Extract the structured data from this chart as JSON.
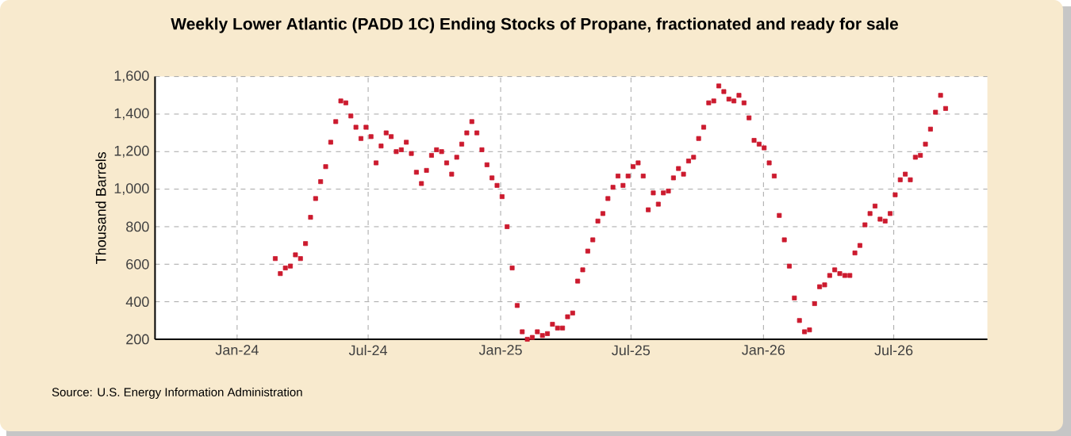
{
  "chart_data": {
    "type": "scatter",
    "title": "Weekly Lower Atlantic (PADD 1C) Ending Stocks of Propane, fractionated and ready for sale",
    "ylabel": "Thousand Barrels",
    "annotations": [
      "Source: U.S. Energy Information Administration"
    ],
    "x": [
      "2024-02-23",
      "2024-03-01",
      "2024-03-08",
      "2024-03-15",
      "2024-03-22",
      "2024-03-29",
      "2024-04-05",
      "2024-04-12",
      "2024-04-19",
      "2024-04-26",
      "2024-05-03",
      "2024-05-10",
      "2024-05-17",
      "2024-05-24",
      "2024-05-31",
      "2024-06-07",
      "2024-06-14",
      "2024-06-21",
      "2024-06-28",
      "2024-07-05",
      "2024-07-12",
      "2024-07-19",
      "2024-07-26",
      "2024-08-02",
      "2024-08-09",
      "2024-08-16",
      "2024-08-23",
      "2024-08-30",
      "2024-09-06",
      "2024-09-13",
      "2024-09-20",
      "2024-09-27",
      "2024-10-04",
      "2024-10-11",
      "2024-10-18",
      "2024-10-25",
      "2024-11-01",
      "2024-11-08",
      "2024-11-15",
      "2024-11-22",
      "2024-11-29",
      "2024-12-06",
      "2024-12-13",
      "2024-12-20",
      "2024-12-27",
      "2025-01-03",
      "2025-01-10",
      "2025-01-17",
      "2025-01-24",
      "2025-01-31",
      "2025-02-07",
      "2025-02-14",
      "2025-02-21",
      "2025-02-28",
      "2025-03-07",
      "2025-03-14",
      "2025-03-21",
      "2025-03-28",
      "2025-04-04",
      "2025-04-11",
      "2025-04-18",
      "2025-04-25",
      "2025-05-02",
      "2025-05-09",
      "2025-05-16",
      "2025-05-23",
      "2025-05-30",
      "2025-06-06",
      "2025-06-13",
      "2025-06-20",
      "2025-06-27",
      "2025-07-04",
      "2025-07-11",
      "2025-07-18",
      "2025-07-25",
      "2025-08-01",
      "2025-08-08",
      "2025-08-15",
      "2025-08-22",
      "2025-08-29",
      "2025-09-05",
      "2025-09-12",
      "2025-09-19",
      "2025-09-26",
      "2025-10-03",
      "2025-10-10",
      "2025-10-17",
      "2025-10-24",
      "2025-10-31",
      "2025-11-07",
      "2025-11-14",
      "2025-11-21",
      "2025-11-28",
      "2025-12-05",
      "2025-12-12",
      "2025-12-19",
      "2025-12-26",
      "2026-01-02",
      "2026-01-09",
      "2026-01-16",
      "2026-01-23",
      "2026-01-30",
      "2026-02-06",
      "2026-02-13",
      "2026-02-20",
      "2026-02-27",
      "2026-03-06",
      "2026-03-13",
      "2026-03-20",
      "2026-03-27",
      "2026-04-03",
      "2026-04-10",
      "2026-04-17",
      "2026-04-24",
      "2026-05-01",
      "2026-05-08",
      "2026-05-15",
      "2026-05-22",
      "2026-05-29",
      "2026-06-05",
      "2026-06-12",
      "2026-06-19",
      "2026-06-26",
      "2026-07-03",
      "2026-07-10",
      "2026-07-17",
      "2026-07-24",
      "2026-07-31",
      "2026-08-07",
      "2026-08-14",
      "2026-08-21",
      "2026-08-28",
      "2026-09-04",
      "2026-09-11"
    ],
    "series": [
      {
        "color": "#cc1a2e",
        "values": [
          630,
          550,
          580,
          590,
          650,
          630,
          710,
          850,
          950,
          1040,
          1120,
          1250,
          1360,
          1470,
          1460,
          1390,
          1330,
          1270,
          1330,
          1280,
          1140,
          1230,
          1300,
          1280,
          1200,
          1210,
          1250,
          1190,
          1090,
          1030,
          1100,
          1180,
          1210,
          1200,
          1140,
          1080,
          1170,
          1240,
          1300,
          1360,
          1300,
          1210,
          1130,
          1060,
          1020,
          960,
          800,
          580,
          380,
          240,
          200,
          210,
          240,
          220,
          230,
          280,
          260,
          260,
          320,
          340,
          510,
          570,
          670,
          730,
          830,
          870,
          950,
          1010,
          1070,
          1020,
          1070,
          1120,
          1140,
          1070,
          890,
          980,
          920,
          980,
          990,
          1060,
          1110,
          1080,
          1150,
          1170,
          1270,
          1330,
          1460,
          1470,
          1550,
          1520,
          1480,
          1470,
          1500,
          1460,
          1380,
          1260,
          1240,
          1220,
          1140,
          1070,
          860,
          730,
          590,
          420,
          300,
          240,
          250,
          390,
          480,
          490,
          540,
          570,
          550,
          540,
          540,
          660,
          700,
          810,
          870,
          910,
          840,
          830,
          870,
          970,
          1050,
          1080,
          1050,
          1170,
          1180,
          1240,
          1320,
          1410,
          1500,
          1430
        ]
      }
    ],
    "xlim": [
      "2023-09-09",
      "2026-11-08"
    ],
    "xticks": [
      {
        "value": "2024-01-01",
        "label": "Jan-24"
      },
      {
        "value": "2024-07-01",
        "label": "Jul-24"
      },
      {
        "value": "2025-01-01",
        "label": "Jan-25"
      },
      {
        "value": "2025-07-01",
        "label": "Jul-25"
      },
      {
        "value": "2026-01-01",
        "label": "Jan-26"
      },
      {
        "value": "2026-07-01",
        "label": "Jul-26"
      }
    ],
    "ylim": [
      200,
      1600
    ],
    "yticks": [
      {
        "value": 200,
        "label": "200"
      },
      {
        "value": 400,
        "label": "400"
      },
      {
        "value": 600,
        "label": "600"
      },
      {
        "value": 800,
        "label": "800"
      },
      {
        "value": 1000,
        "label": "1,000"
      },
      {
        "value": 1200,
        "label": "1,200"
      },
      {
        "value": 1400,
        "label": "1,400"
      },
      {
        "value": 1600,
        "label": "1,600"
      }
    ],
    "grid": true,
    "marker": "square"
  }
}
